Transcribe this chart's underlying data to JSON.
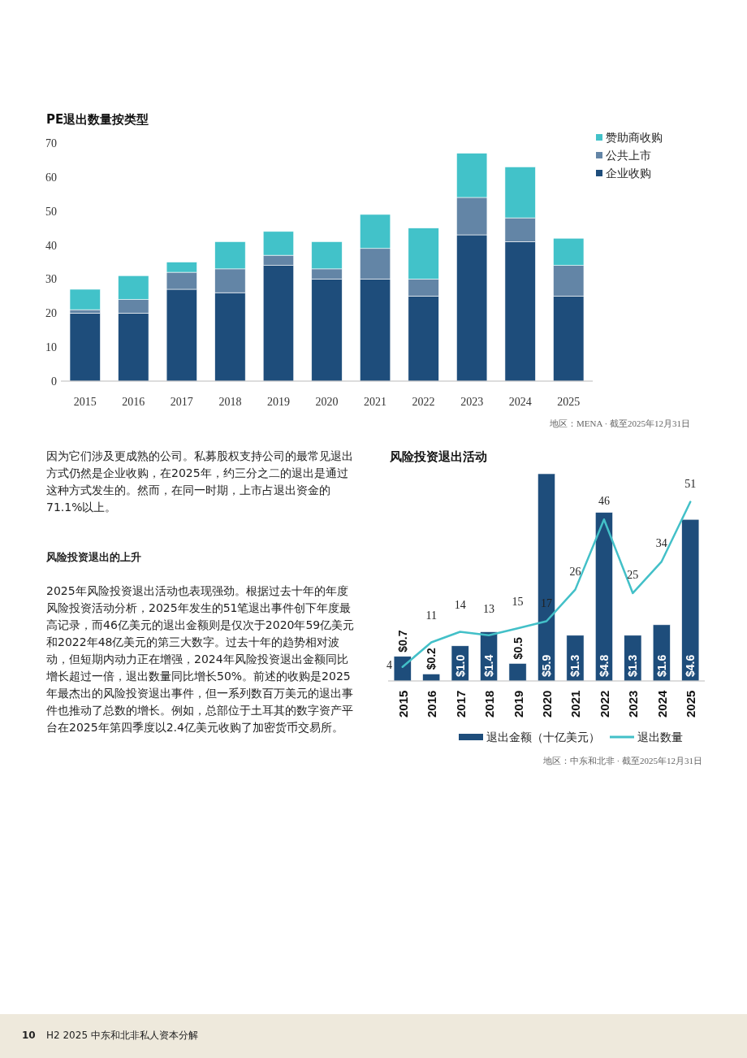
{
  "chart_data": [
    {
      "type": "bar",
      "title": "PE退出数量按类型",
      "stacked": true,
      "categories": [
        "2015",
        "2016",
        "2017",
        "2018",
        "2019",
        "2020",
        "2021",
        "2022",
        "2023",
        "2024",
        "2025"
      ],
      "series": [
        {
          "name": "企业收购",
          "color": "#1e4d7b",
          "values": [
            20,
            20,
            27,
            26,
            34,
            30,
            30,
            25,
            43,
            41,
            25
          ]
        },
        {
          "name": "公共上市",
          "color": "#6385a6",
          "values": [
            1,
            4,
            5,
            7,
            3,
            3,
            9,
            5,
            11,
            7,
            9
          ]
        },
        {
          "name": "赞助商收购",
          "color": "#42c2c9",
          "values": [
            6,
            7,
            3,
            8,
            7,
            8,
            10,
            15,
            13,
            15,
            8
          ]
        }
      ],
      "ylim": [
        0,
        70
      ],
      "yticks": [
        0,
        10,
        20,
        30,
        40,
        50,
        60,
        70
      ],
      "grid": false,
      "legend": "top right",
      "annotations": [
        "地区：MENA · 截至2025年12月31日"
      ]
    },
    {
      "type": "bar",
      "title": "风险投资退出活动",
      "categories": [
        "2015",
        "2016",
        "2017",
        "2018",
        "2019",
        "2020",
        "2021",
        "2022",
        "2023",
        "2024",
        "2025"
      ],
      "series": [
        {
          "name": "退出金额（十亿美元）",
          "color": "#1e4d7b",
          "values": [
            0.7,
            0.2,
            1.0,
            1.4,
            0.5,
            5.9,
            1.3,
            4.8,
            1.3,
            1.6,
            4.6
          ],
          "value_labels": [
            "$0.7",
            "$0.2",
            "$1.0",
            "$1.4",
            "$0.5",
            "$5.9",
            "$1.3",
            "$4.8",
            "$1.3",
            "$1.6",
            "$4.6"
          ]
        },
        {
          "name": "退出数量",
          "type": "line",
          "axis": "y2",
          "color": "#43c0c8",
          "values": [
            4,
            11,
            14,
            13,
            15,
            17,
            26,
            46,
            25,
            34,
            51
          ]
        }
      ],
      "ylim": [
        0,
        5.9
      ],
      "y2lim": [
        0,
        59
      ],
      "tick_labels": "x",
      "data_labels": true,
      "grid": false,
      "legend": "bottom",
      "marker": "none",
      "annotations": [
        "地区：中东和北非 · 截至2025年12月31日",
        "因为它们涉及更成熟的公司。私募股权支持公司的最常见退出方式仍然是企业收购，在2025年，约三分之二的退出是通过这种方式发生的。然而，在同一时期，上市占退出资金的71.1%以上。",
        "风险投资退出的上升",
        "2025年风险投资退出活动也表现强劲。根据过去十年的年度风险投资活动分析，2025年发生的51笔退出事件创下年度最高记录，而46亿美元的退出金额则是仅次于2020年59亿美元和2022年48亿美元的第三大数字。过去十年的趋势相对波动，但短期内动力正在增强，2024年风险投资退出金额同比增长超过一倍，退出数量同比增长50%。前述的收购是2025年最杰出的风险投资退出事件，但一系列数百万美元的退出事件也推动了总数的增长。例如，总部位于土耳其的数字资产平台在2025年第四季度以2.4亿美元收购了加密货币交易所。",
        "10",
        "H2 2025 中东和北非私人资本分解"
      ]
    }
  ]
}
